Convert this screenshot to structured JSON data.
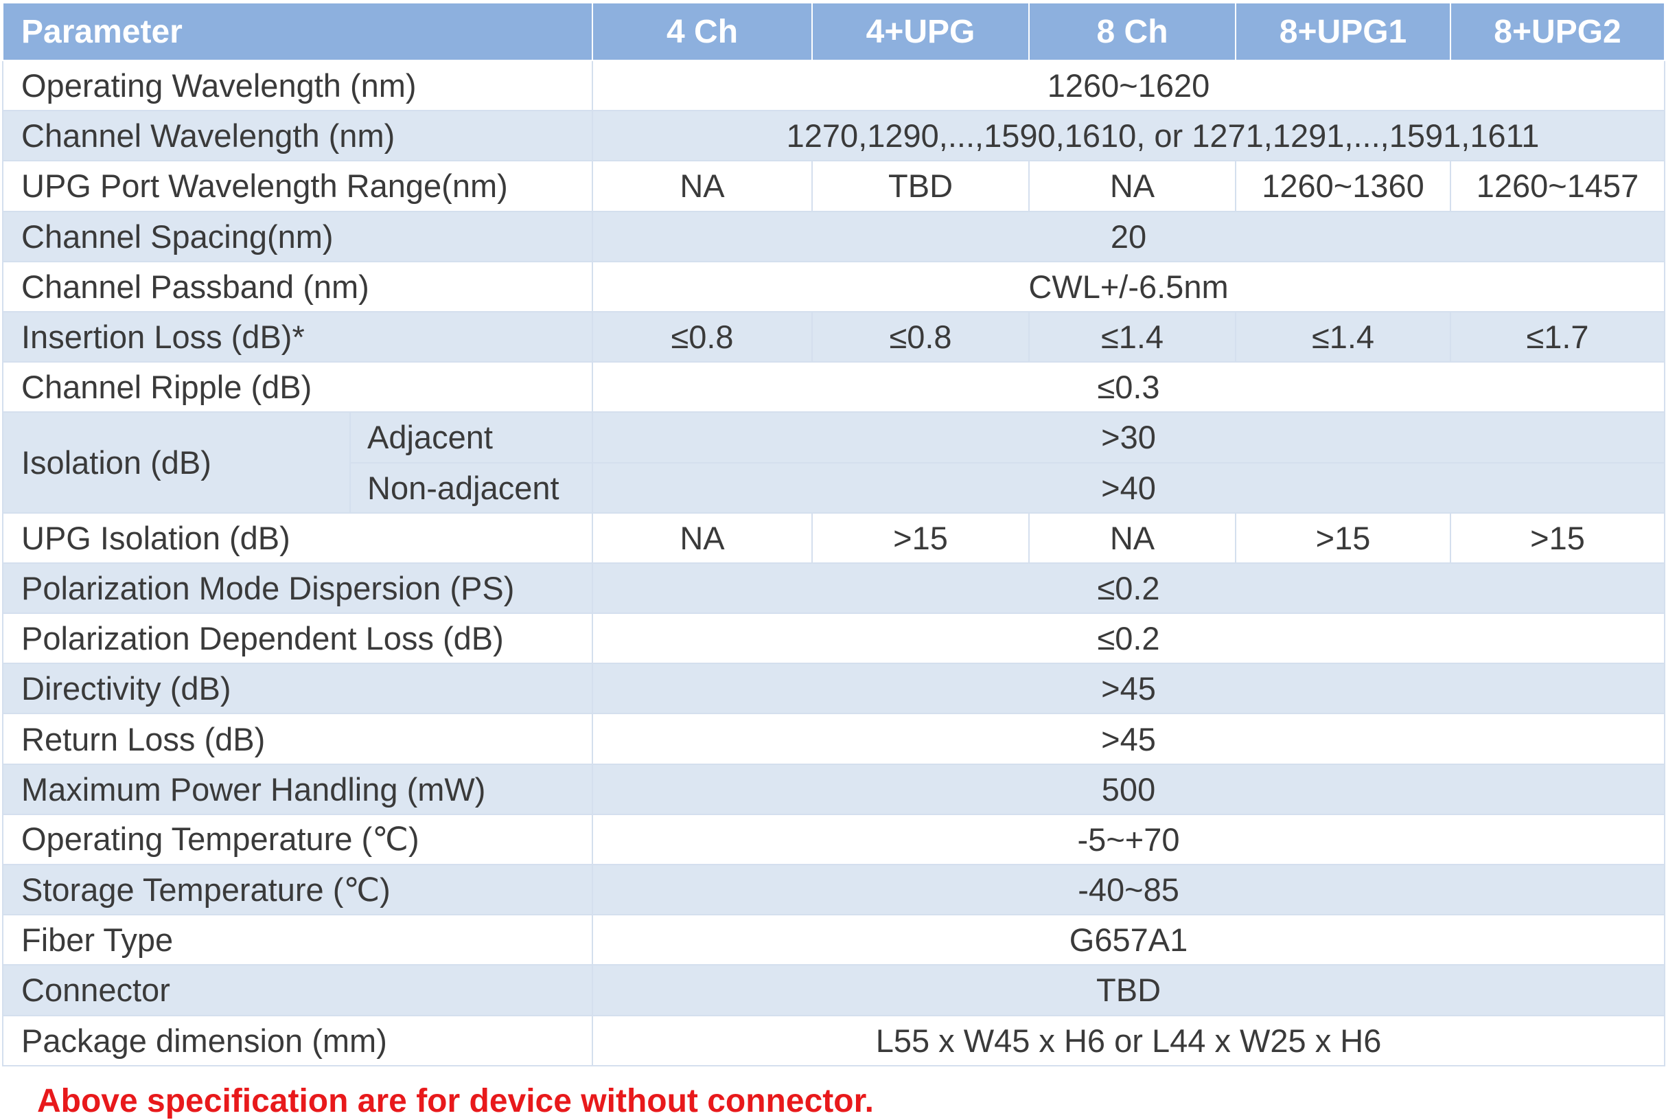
{
  "header": {
    "parameter": "Parameter",
    "col_4ch": "4 Ch",
    "col_4upg": "4+UPG",
    "col_8ch": "8 Ch",
    "col_8upg1": "8+UPG1",
    "col_8upg2": "8+UPG2"
  },
  "rows": {
    "operating_wavelength": {
      "label": "Operating Wavelength (nm)",
      "value": "1260~1620"
    },
    "channel_wavelength": {
      "label": "Channel Wavelength (nm)",
      "value": "1270,1290,...,1590,1610, or 1271,1291,...,1591,1611"
    },
    "upg_port_range": {
      "label": "UPG Port Wavelength Range(nm)",
      "v4ch": "NA",
      "v4upg": "TBD",
      "v8ch": "NA",
      "v8upg1": "1260~1360",
      "v8upg2": "1260~1457"
    },
    "channel_spacing": {
      "label": "Channel Spacing(nm)",
      "value": "20"
    },
    "channel_passband": {
      "label": "Channel Passband (nm)",
      "value": "CWL+/-6.5nm"
    },
    "insertion_loss": {
      "label": "Insertion Loss (dB)*",
      "v4ch": "≤0.8",
      "v4upg": "≤0.8",
      "v8ch": "≤1.4",
      "v8upg1": "≤1.4",
      "v8upg2": "≤1.7"
    },
    "channel_ripple": {
      "label": "Channel Ripple (dB)",
      "value": "≤0.3"
    },
    "isolation": {
      "label": "Isolation (dB)",
      "adjacent_label": "Adjacent",
      "adjacent_value": ">30",
      "nonadjacent_label": "Non-adjacent",
      "nonadjacent_value": ">40"
    },
    "upg_isolation": {
      "label": "UPG Isolation  (dB)",
      "v4ch": "NA",
      "v4upg": ">15",
      "v8ch": "NA",
      "v8upg1": ">15",
      "v8upg2": ">15"
    },
    "pmd": {
      "label": "Polarization Mode Dispersion (PS)",
      "value": "≤0.2"
    },
    "pdl": {
      "label": "Polarization Dependent Loss (dB)",
      "value": "≤0.2"
    },
    "directivity": {
      "label": "Directivity (dB)",
      "value": ">45"
    },
    "return_loss": {
      "label": "Return Loss  (dB)",
      "value": ">45"
    },
    "max_power": {
      "label": "Maximum Power Handling (mW)",
      "value": "500"
    },
    "operating_temp": {
      "label": "Operating Temperature (℃)",
      "value": "-5~+70"
    },
    "storage_temp": {
      "label": "Storage Temperature (℃)",
      "value": "-40~85"
    },
    "fiber_type": {
      "label": "Fiber Type",
      "value": "G657A1"
    },
    "connector": {
      "label": "Connector",
      "value": "TBD"
    },
    "package_dimension": {
      "label": "Package dimension (mm)",
      "value": "L55 x W45 x H6 or L44 x W25 x H6"
    }
  },
  "note": "Above specification are for device without connector.",
  "colors": {
    "header_bg": "#8db0de",
    "stripe_bg": "#dce6f2",
    "note_color": "#e8191b"
  }
}
